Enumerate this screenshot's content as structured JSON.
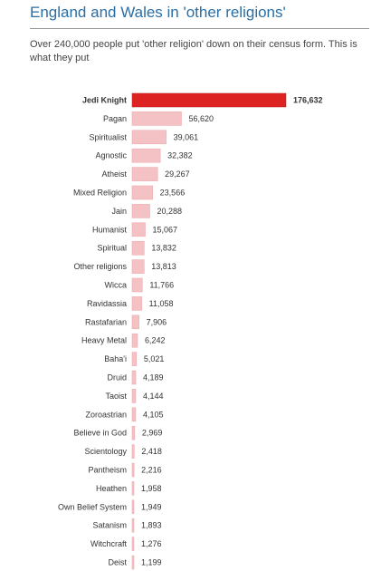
{
  "header": {
    "title": "England and Wales in 'other religions'",
    "subtitle": "Over 240,000 people put 'other religion' down on their census form. This is what they put"
  },
  "colors": {
    "title": "#2a6ea6",
    "highlight_bar": "#dd2222",
    "highlight_border": "#b81a1a",
    "bar": "#f4c2c4",
    "bar_border": "#e9a4a8"
  },
  "chart_data": {
    "type": "bar",
    "orientation": "horizontal",
    "highlight_index": 0,
    "categories": [
      "Jedi Knight",
      "Pagan",
      "Spiritualist",
      "Agnostic",
      "Atheist",
      "Mixed Religion",
      "Jain",
      "Humanist",
      "Spiritual",
      "Other religions",
      "Wicca",
      "Ravidassia",
      "Rastafarian",
      "Heavy Metal",
      "Baha'i",
      "Druid",
      "Taoist",
      "Zoroastrian",
      "Believe in God",
      "Scientology",
      "Pantheism",
      "Heathen",
      "Own Belief System",
      "Satanism",
      "Witchcraft",
      "Deist"
    ],
    "values": [
      176632,
      56620,
      39061,
      32382,
      29267,
      23566,
      20288,
      15067,
      13832,
      13813,
      11766,
      11058,
      7906,
      6242,
      5021,
      4189,
      4144,
      4105,
      2969,
      2418,
      2216,
      1958,
      1949,
      1893,
      1276,
      1199
    ],
    "value_labels": [
      "176,632",
      "56,620",
      "39,061",
      "32,382",
      "29,267",
      "23,566",
      "20,288",
      "15,067",
      "13,832",
      "13,813",
      "11,766",
      "11,058",
      "7,906",
      "6,242",
      "5,021",
      "4,189",
      "4,144",
      "4,105",
      "2,969",
      "2,418",
      "2,216",
      "1,958",
      "1,949",
      "1,893",
      "1,276",
      "1,199"
    ],
    "xlim": [
      0,
      176632
    ]
  }
}
